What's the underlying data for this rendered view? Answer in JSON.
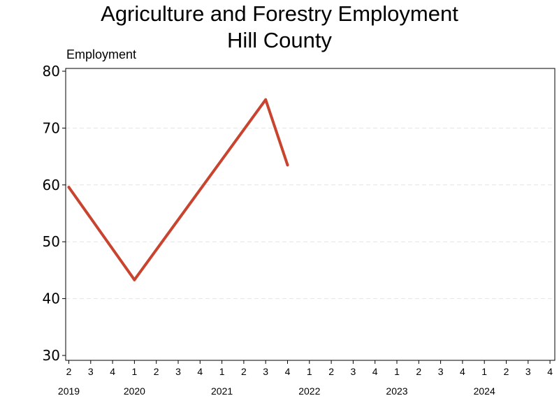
{
  "chart_data": {
    "type": "line",
    "title": "Agriculture and Forestry Employment",
    "subtitle": "Hill County",
    "ylabel": "Employment",
    "xlabel": "",
    "ylim": [
      30,
      80
    ],
    "yticks": [
      30,
      40,
      50,
      60,
      70,
      80
    ],
    "grid": true,
    "legend": "none",
    "x_quarter_labels": [
      "2",
      "3",
      "4",
      "1",
      "2",
      "3",
      "4",
      "1",
      "2",
      "3",
      "4",
      "1",
      "2",
      "3",
      "4",
      "1",
      "2",
      "3",
      "4",
      "1",
      "2",
      "3",
      "4"
    ],
    "x_year_labels": [
      "2019",
      "2020",
      "2021",
      "2022",
      "2023",
      "2024"
    ],
    "series": [
      {
        "color": "#c8442f",
        "x": [
          "2019 Q2",
          "2020 Q1",
          "2021 Q3",
          "2021 Q4"
        ],
        "values": [
          59.6,
          43.3,
          75.0,
          63.5
        ]
      }
    ]
  }
}
